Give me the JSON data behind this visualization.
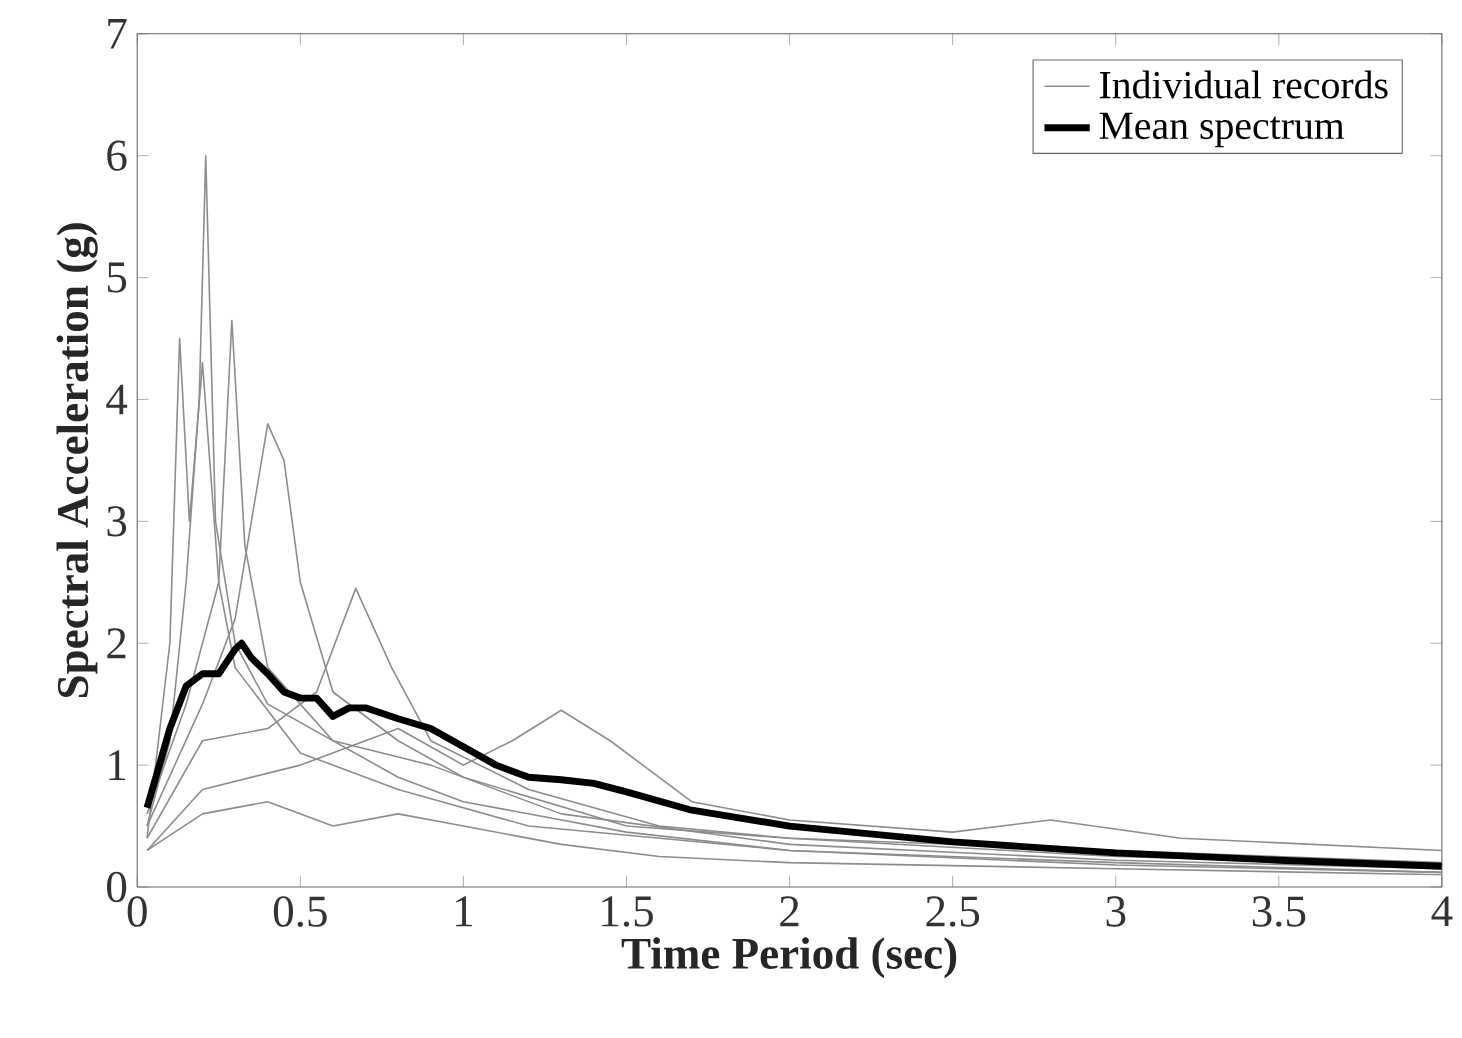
{
  "chart_data": {
    "type": "line",
    "xlabel": "Time Period (sec)",
    "ylabel": "Spectral Acceleration (g)",
    "xlim": [
      0,
      4
    ],
    "ylim": [
      0,
      7
    ],
    "xticks": [
      0,
      0.5,
      1,
      1.5,
      2,
      2.5,
      3,
      3.5,
      4
    ],
    "yticks": [
      0,
      1,
      2,
      3,
      4,
      5,
      6,
      7
    ],
    "grid": false,
    "legend": "top right",
    "marker": "none",
    "line_style": "solid",
    "series": [
      {
        "name": "Individual records",
        "color": "#8c8c8c",
        "x": [
          0.03,
          0.1,
          0.15,
          0.19,
          0.21,
          0.24,
          0.3,
          0.4,
          0.6,
          0.8,
          1.0,
          1.5,
          2,
          3,
          4
        ],
        "values": [
          0.5,
          1.2,
          2.5,
          4.0,
          6.0,
          3.0,
          2.0,
          1.5,
          1.2,
          0.9,
          0.7,
          0.45,
          0.3,
          0.2,
          0.12
        ]
      },
      {
        "color": "#8c8c8c",
        "x": [
          0.03,
          0.1,
          0.13,
          0.16,
          0.2,
          0.25,
          0.3,
          0.5,
          0.8,
          1.2,
          2,
          3,
          4
        ],
        "values": [
          0.4,
          2.0,
          4.5,
          3.0,
          4.3,
          2.5,
          1.8,
          1.1,
          0.8,
          0.5,
          0.3,
          0.18,
          0.12
        ]
      },
      {
        "color": "#8c8c8c",
        "x": [
          0.03,
          0.15,
          0.25,
          0.29,
          0.33,
          0.4,
          0.6,
          0.9,
          1.3,
          2,
          3,
          4
        ],
        "values": [
          0.6,
          1.5,
          2.5,
          4.65,
          2.8,
          1.8,
          1.2,
          1.0,
          0.6,
          0.35,
          0.22,
          0.15
        ]
      },
      {
        "color": "#8c8c8c",
        "x": [
          0.03,
          0.2,
          0.3,
          0.35,
          0.4,
          0.45,
          0.5,
          0.6,
          0.8,
          1.0,
          1.5,
          2,
          3,
          4
        ],
        "values": [
          0.5,
          1.5,
          2.2,
          3.0,
          3.8,
          3.5,
          2.5,
          1.6,
          1.2,
          0.9,
          0.5,
          0.4,
          0.25,
          0.18
        ]
      },
      {
        "color": "#8c8c8c",
        "x": [
          0.03,
          0.2,
          0.4,
          0.55,
          0.67,
          0.78,
          0.9,
          1.2,
          1.6,
          2,
          3,
          4
        ],
        "values": [
          0.4,
          1.2,
          1.3,
          1.6,
          2.45,
          1.8,
          1.2,
          0.8,
          0.5,
          0.4,
          0.3,
          0.2
        ]
      },
      {
        "color": "#8c8c8c",
        "x": [
          0.03,
          0.2,
          0.5,
          0.8,
          1.0,
          1.15,
          1.3,
          1.45,
          1.7,
          2,
          2.5,
          2.8,
          3.2,
          4
        ],
        "values": [
          0.3,
          0.8,
          1.0,
          1.3,
          1.0,
          1.2,
          1.45,
          1.2,
          0.7,
          0.55,
          0.45,
          0.55,
          0.4,
          0.3
        ]
      },
      {
        "color": "#8c8c8c",
        "x": [
          0.03,
          0.2,
          0.4,
          0.6,
          0.8,
          1.0,
          1.3,
          1.6,
          2,
          3,
          4
        ],
        "values": [
          0.3,
          0.6,
          0.7,
          0.5,
          0.6,
          0.5,
          0.35,
          0.25,
          0.2,
          0.15,
          0.1
        ]
      },
      {
        "name": "Mean spectrum",
        "color": "#000000",
        "x": [
          0.03,
          0.1,
          0.15,
          0.2,
          0.25,
          0.3,
          0.32,
          0.35,
          0.4,
          0.45,
          0.5,
          0.55,
          0.6,
          0.65,
          0.7,
          0.8,
          0.9,
          1.0,
          1.1,
          1.2,
          1.3,
          1.4,
          1.5,
          1.7,
          2.0,
          2.5,
          3.0,
          3.5,
          4.0
        ],
        "values": [
          0.65,
          1.3,
          1.65,
          1.75,
          1.75,
          1.95,
          2.0,
          1.88,
          1.75,
          1.6,
          1.55,
          1.55,
          1.4,
          1.47,
          1.47,
          1.38,
          1.3,
          1.15,
          1.0,
          0.9,
          0.88,
          0.85,
          0.78,
          0.63,
          0.5,
          0.37,
          0.28,
          0.22,
          0.17
        ]
      }
    ]
  }
}
